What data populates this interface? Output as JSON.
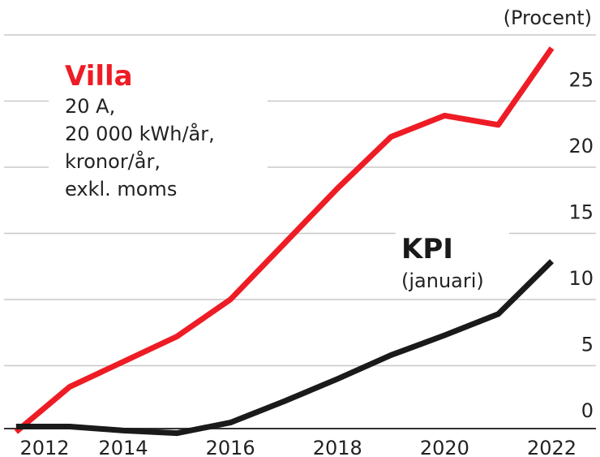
{
  "chart_data": {
    "type": "line",
    "unit_label": "(Procent)",
    "x": [
      2012,
      2013,
      2014,
      2015,
      2016,
      2017,
      2018,
      2019,
      2020,
      2021,
      2022
    ],
    "series": [
      {
        "name": "Villa",
        "color": "#ee1c25",
        "notes": [
          "20 A,",
          "20 000 kWh/år,",
          "kronor/år,",
          "exkl. moms"
        ],
        "values": [
          0,
          3.4,
          5.3,
          7.2,
          10.0,
          14.2,
          18.4,
          22.3,
          23.9,
          23.2,
          29.0
        ]
      },
      {
        "name": "KPI",
        "color": "#1a1a1a",
        "notes": [
          "(januari)"
        ],
        "values": [
          0.4,
          0.4,
          0.1,
          -0.1,
          0.7,
          2.3,
          4.0,
          5.8,
          7.3,
          8.9,
          12.9
        ]
      }
    ],
    "xlim": [
      2011.7,
      2022.9
    ],
    "xticks": [
      2012,
      2014,
      2016,
      2018,
      2020,
      2022
    ],
    "ylim": [
      0,
      30
    ],
    "yticks": [
      0,
      5,
      10,
      15,
      20,
      25
    ],
    "grid": true
  }
}
